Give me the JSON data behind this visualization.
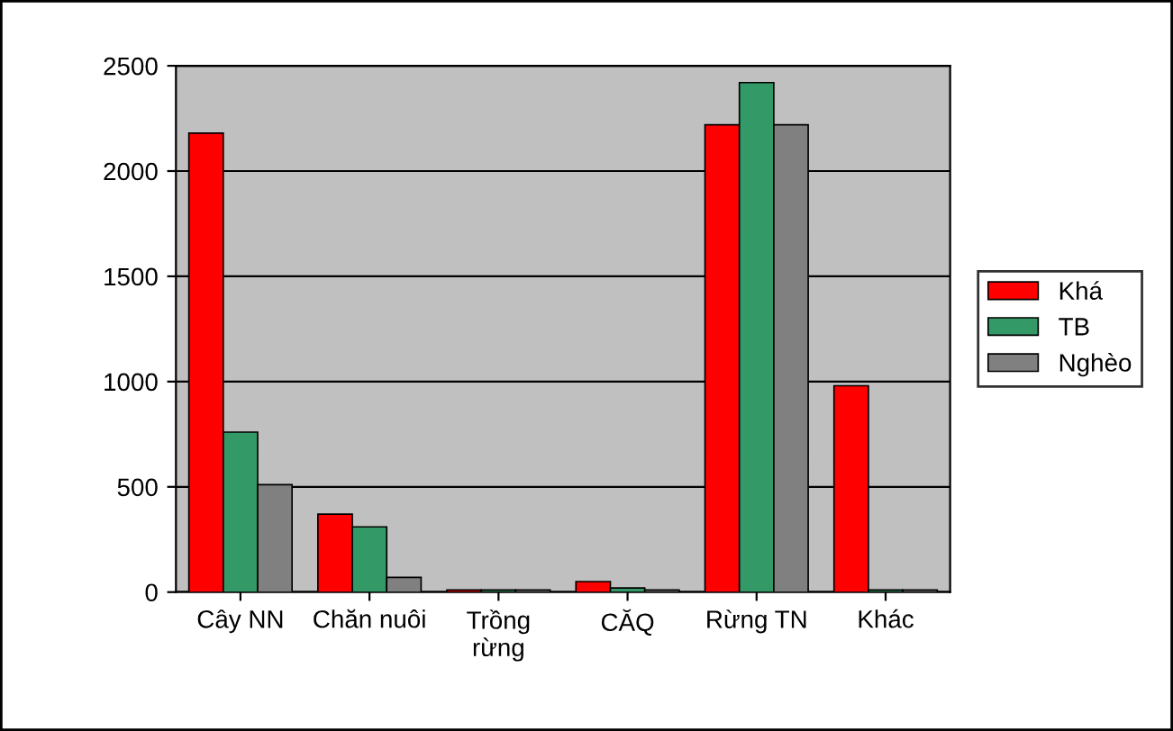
{
  "chart_data": {
    "type": "bar",
    "categories": [
      "Cây NN",
      "Chăn nuôi",
      "Trồng\nrừng",
      "CĂQ",
      "Rừng TN",
      "Khác"
    ],
    "series": [
      {
        "name": "Khá",
        "color": "#ff0000",
        "values": [
          2180,
          370,
          10,
          50,
          2220,
          980
        ]
      },
      {
        "name": "TB",
        "color": "#339966",
        "values": [
          760,
          310,
          10,
          20,
          2420,
          10
        ]
      },
      {
        "name": "Nghèo",
        "color": "#808080",
        "values": [
          510,
          70,
          10,
          10,
          2220,
          10
        ]
      }
    ],
    "ylim": [
      0,
      2500
    ],
    "yticks": [
      0,
      500,
      1000,
      1500,
      2000,
      2500
    ],
    "grid": "y",
    "legend": "right"
  }
}
